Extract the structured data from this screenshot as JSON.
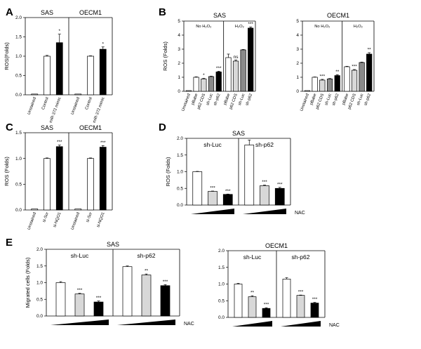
{
  "colors": {
    "white": "#ffffff",
    "light": "#d8d8d8",
    "dark": "#8a8a8a",
    "black": "#000000"
  },
  "chart_data": [
    {
      "panel": "A",
      "type": "bar",
      "ylabel": "ROS(Folds)",
      "ylim": [
        0,
        2.0
      ],
      "yticks": [
        "0.0",
        "0.5",
        "1.0",
        "1.5",
        "2.0"
      ],
      "groups": [
        {
          "title": "SAS",
          "bars": [
            {
              "label": "Unstained",
              "value": 0.02,
              "err": 0.0,
              "fill": "white",
              "sig": ""
            },
            {
              "label": "Control",
              "value": 1.0,
              "err": 0.02,
              "fill": "white",
              "sig": ""
            },
            {
              "label": "miR-372 mimic",
              "value": 1.35,
              "err": 0.22,
              "fill": "black",
              "sig": "*"
            }
          ]
        },
        {
          "title": "OECM1",
          "bars": [
            {
              "label": "Unstained",
              "value": 0.02,
              "err": 0.0,
              "fill": "white",
              "sig": ""
            },
            {
              "label": "Control",
              "value": 1.0,
              "err": 0.01,
              "fill": "white",
              "sig": ""
            },
            {
              "label": "miR-372 mimic",
              "value": 1.18,
              "err": 0.06,
              "fill": "black",
              "sig": "*"
            }
          ]
        }
      ]
    },
    {
      "panel": "B1",
      "type": "bar",
      "title": "SAS",
      "ylabel": "ROS (Folds)",
      "ylim": [
        0,
        5
      ],
      "yticks": [
        "0",
        "1",
        "2",
        "3",
        "4",
        "5"
      ],
      "segments": [
        "No H₂O₂",
        "H₂O₂"
      ],
      "bars": [
        {
          "label": "Unstained",
          "value": 0.05,
          "err": 0.0,
          "fill": "white",
          "sig": "",
          "seg": 0
        },
        {
          "label": "pBabe",
          "value": 1.0,
          "err": 0.03,
          "fill": "white",
          "sig": "",
          "seg": 0
        },
        {
          "label": "p62 CDS",
          "value": 0.88,
          "err": 0.04,
          "fill": "light",
          "sig": "*",
          "seg": 0
        },
        {
          "label": "sh-Luc",
          "value": 1.05,
          "err": 0.03,
          "fill": "dark",
          "sig": "",
          "seg": 0
        },
        {
          "label": "sh-p62",
          "value": 1.38,
          "err": 0.05,
          "fill": "black",
          "sig": "***",
          "seg": 0
        },
        {
          "label": "pBabe",
          "value": 2.4,
          "err": 0.25,
          "fill": "white",
          "sig": "",
          "seg": 1
        },
        {
          "label": "p62 CDS",
          "value": 2.15,
          "err": 0.08,
          "fill": "light",
          "sig": "ns",
          "seg": 1
        },
        {
          "label": "sh-Luc",
          "value": 2.95,
          "err": 0.03,
          "fill": "dark",
          "sig": "",
          "seg": 1
        },
        {
          "label": "sh-p62",
          "value": 4.5,
          "err": 0.08,
          "fill": "black",
          "sig": "***",
          "seg": 1
        }
      ]
    },
    {
      "panel": "B2",
      "type": "bar",
      "title": "OECM1",
      "ylabel": "",
      "ylim": [
        0,
        5
      ],
      "yticks": [
        "0",
        "1",
        "2",
        "3",
        "4",
        "5"
      ],
      "segments": [
        "No H₂O₂",
        "H₂O₂"
      ],
      "bars": [
        {
          "label": "Unstained",
          "value": 0.05,
          "err": 0.0,
          "fill": "white",
          "sig": "",
          "seg": 0
        },
        {
          "label": "pBabe",
          "value": 1.0,
          "err": 0.02,
          "fill": "white",
          "sig": "",
          "seg": 0
        },
        {
          "label": "p62 CDS",
          "value": 0.8,
          "err": 0.05,
          "fill": "light",
          "sig": "***",
          "seg": 0
        },
        {
          "label": "sh-Luc",
          "value": 0.88,
          "err": 0.03,
          "fill": "dark",
          "sig": "",
          "seg": 0
        },
        {
          "label": "sh-p62",
          "value": 1.12,
          "err": 0.06,
          "fill": "black",
          "sig": "**",
          "seg": 0
        },
        {
          "label": "pBabe",
          "value": 1.75,
          "err": 0.03,
          "fill": "white",
          "sig": "",
          "seg": 1
        },
        {
          "label": "p62 CDS",
          "value": 1.5,
          "err": 0.05,
          "fill": "light",
          "sig": "***",
          "seg": 1
        },
        {
          "label": "sh-Luc",
          "value": 2.05,
          "err": 0.03,
          "fill": "dark",
          "sig": "",
          "seg": 1
        },
        {
          "label": "sh-p62",
          "value": 2.65,
          "err": 0.1,
          "fill": "black",
          "sig": "**",
          "seg": 1
        }
      ]
    },
    {
      "panel": "C",
      "type": "bar",
      "ylabel": "ROS (Folds)",
      "ylim": [
        0,
        1.5
      ],
      "yticks": [
        "0.0",
        "0.5",
        "1.0",
        "1.5"
      ],
      "groups": [
        {
          "title": "SAS",
          "bars": [
            {
              "label": "Unstained",
              "value": 0.02,
              "err": 0.0,
              "fill": "white",
              "sig": ""
            },
            {
              "label": "si-Scr",
              "value": 1.0,
              "err": 0.01,
              "fill": "white",
              "sig": ""
            },
            {
              "label": "si-NQO1",
              "value": 1.23,
              "err": 0.03,
              "fill": "black",
              "sig": "***"
            }
          ]
        },
        {
          "title": "OECM1",
          "bars": [
            {
              "label": "Unstained",
              "value": 0.02,
              "err": 0.0,
              "fill": "white",
              "sig": ""
            },
            {
              "label": "si-Scr",
              "value": 1.0,
              "err": 0.01,
              "fill": "white",
              "sig": ""
            },
            {
              "label": "si-NQO1",
              "value": 1.22,
              "err": 0.03,
              "fill": "black",
              "sig": "***"
            }
          ]
        }
      ]
    },
    {
      "panel": "D",
      "type": "bar",
      "title": "SAS",
      "ylabel": "ROS (Folds)",
      "ylim": [
        0,
        2.0
      ],
      "yticks": [
        "0.0",
        "0.5",
        "1.0",
        "1.5",
        "2.0"
      ],
      "treatment": "NAC",
      "groups": [
        {
          "title": "sh-Luc",
          "bars": [
            {
              "value": 1.0,
              "err": 0.01,
              "fill": "white",
              "sig": ""
            },
            {
              "value": 0.41,
              "err": 0.01,
              "fill": "light",
              "sig": "***"
            },
            {
              "value": 0.32,
              "err": 0.01,
              "fill": "black",
              "sig": "***"
            }
          ]
        },
        {
          "title": "sh-p62",
          "bars": [
            {
              "value": 1.8,
              "err": 0.15,
              "fill": "white",
              "sig": ""
            },
            {
              "value": 0.58,
              "err": 0.02,
              "fill": "light",
              "sig": "***"
            },
            {
              "value": 0.5,
              "err": 0.03,
              "fill": "black",
              "sig": "***"
            }
          ]
        }
      ]
    },
    {
      "panel": "E1",
      "type": "bar",
      "title": "SAS",
      "ylabel": "Migrated cells (Folds)",
      "ylim": [
        0,
        2.0
      ],
      "yticks": [
        "0.0",
        "0.5",
        "1.0",
        "1.5",
        "2.0"
      ],
      "treatment": "NAC",
      "groups": [
        {
          "title": "sh-Luc",
          "bars": [
            {
              "value": 1.0,
              "err": 0.03,
              "fill": "white",
              "sig": ""
            },
            {
              "value": 0.66,
              "err": 0.02,
              "fill": "light",
              "sig": "***"
            },
            {
              "value": 0.42,
              "err": 0.03,
              "fill": "black",
              "sig": "***"
            }
          ]
        },
        {
          "title": "sh-p62",
          "bars": [
            {
              "value": 1.48,
              "err": 0.02,
              "fill": "white",
              "sig": ""
            },
            {
              "value": 1.23,
              "err": 0.03,
              "fill": "light",
              "sig": "**"
            },
            {
              "value": 0.91,
              "err": 0.03,
              "fill": "black",
              "sig": "***"
            }
          ]
        }
      ]
    },
    {
      "panel": "E2",
      "type": "bar",
      "title": "OECM1",
      "ylabel": "",
      "ylim": [
        0,
        2.0
      ],
      "yticks": [
        "0.0",
        "0.5",
        "1.0",
        "1.5",
        "2.0"
      ],
      "treatment": "NAC",
      "groups": [
        {
          "title": "sh-Luc",
          "bars": [
            {
              "value": 1.0,
              "err": 0.02,
              "fill": "white",
              "sig": ""
            },
            {
              "value": 0.62,
              "err": 0.03,
              "fill": "light",
              "sig": "**"
            },
            {
              "value": 0.27,
              "err": 0.02,
              "fill": "black",
              "sig": "***"
            }
          ]
        },
        {
          "title": "sh-p62",
          "bars": [
            {
              "value": 1.15,
              "err": 0.04,
              "fill": "white",
              "sig": ""
            },
            {
              "value": 0.66,
              "err": 0.01,
              "fill": "light",
              "sig": "***"
            },
            {
              "value": 0.43,
              "err": 0.02,
              "fill": "black",
              "sig": "***"
            }
          ]
        }
      ]
    }
  ]
}
